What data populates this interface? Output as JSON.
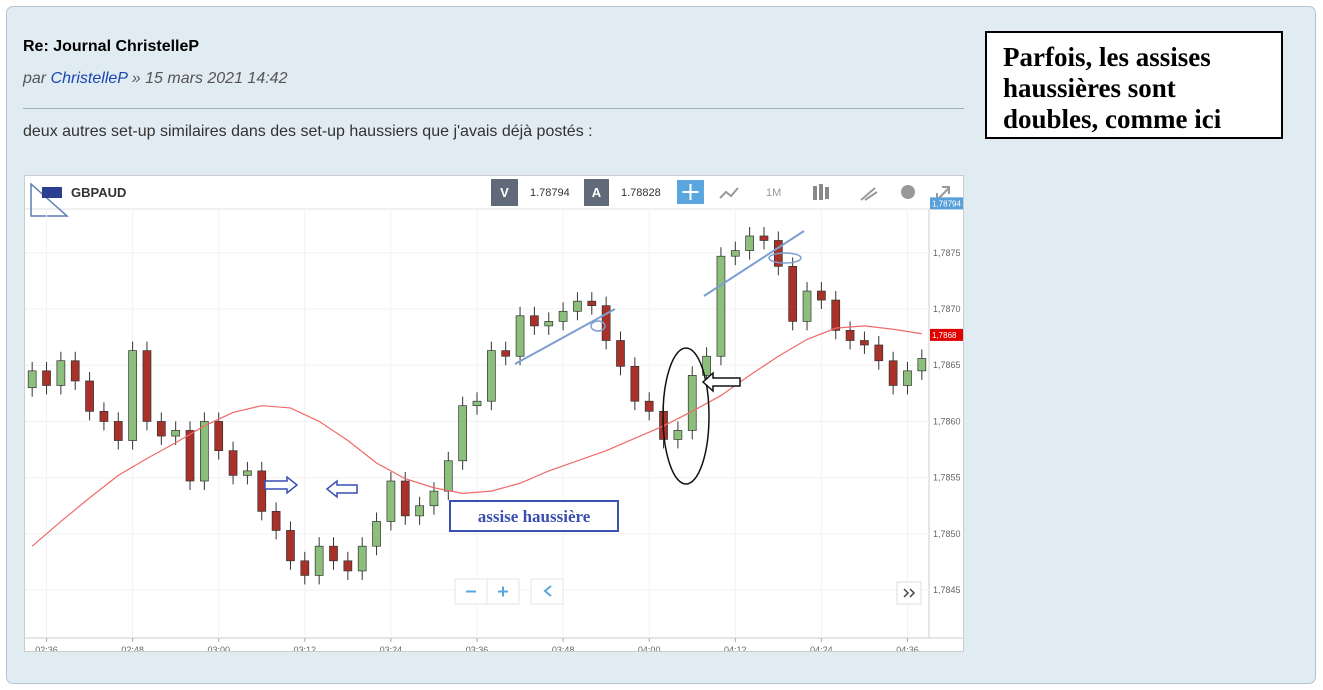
{
  "post": {
    "title": "Re: Journal ChristelleP",
    "by": "par",
    "author": "ChristelleP",
    "date": "» 15 mars 2021 14:42",
    "body": "deux autres set-up similaires dans des set-up haussiers que j'avais déjà postés :"
  },
  "callout": {
    "lines": [
      "Parfois, les assises",
      "haussières sont",
      "doubles, comme ici"
    ]
  },
  "chart_data": {
    "type": "candlestick",
    "title": "GBPAUD",
    "toolbar": {
      "bid_label": "V",
      "bid": "1.78794",
      "ask_label": "A",
      "ask": "1.78828",
      "timeframe": "1M"
    },
    "annotation": "assise haussière",
    "price_tag": {
      "value": 1.78794,
      "label": "1,78794"
    },
    "ma_tag": {
      "value": 1.78677,
      "label": "1,7868"
    },
    "x": [
      "02:34",
      "02:36",
      "02:38",
      "02:40",
      "02:42",
      "02:44",
      "02:46",
      "02:48",
      "02:50",
      "02:52",
      "02:54",
      "02:56",
      "02:58",
      "03:00",
      "03:02",
      "03:04",
      "03:06",
      "03:08",
      "03:10",
      "03:12",
      "03:14",
      "03:16",
      "03:18",
      "03:20",
      "03:22",
      "03:24",
      "03:26",
      "03:28",
      "03:30",
      "03:32",
      "03:34",
      "03:36",
      "03:38",
      "03:40",
      "03:42",
      "03:44",
      "03:46",
      "03:48",
      "03:50",
      "03:52",
      "03:54",
      "03:56",
      "03:58",
      "04:00",
      "04:02",
      "04:04",
      "04:06",
      "04:08",
      "04:10",
      "04:12",
      "04:14",
      "04:16",
      "04:18",
      "04:20",
      "04:22",
      "04:24",
      "04:26",
      "04:28",
      "04:30",
      "04:32",
      "04:34",
      "04:36",
      "04:38"
    ],
    "open": [
      1.7863,
      1.78645,
      1.78632,
      1.78654,
      1.78636,
      1.78609,
      1.786,
      1.78583,
      1.78663,
      1.786,
      1.78587,
      1.78592,
      1.78547,
      1.786,
      1.78574,
      1.78552,
      1.78556,
      1.7852,
      1.78503,
      1.78476,
      1.78463,
      1.78489,
      1.78476,
      1.78467,
      1.78489,
      1.78511,
      1.78547,
      1.78516,
      1.78525,
      1.78538,
      1.78565,
      1.78614,
      1.78618,
      1.78663,
      1.78658,
      1.78694,
      1.78685,
      1.78689,
      1.78698,
      1.78707,
      1.78703,
      1.78672,
      1.78649,
      1.78618,
      1.78609,
      1.78584,
      1.78592,
      1.78641,
      1.78658,
      1.78747,
      1.78752,
      1.78765,
      1.78761,
      1.78738,
      1.78689,
      1.78716,
      1.78708,
      1.78681,
      1.78672,
      1.78668,
      1.78654,
      1.78632,
      1.78645
    ],
    "high": [
      1.78653,
      1.78653,
      1.78662,
      1.78662,
      1.78644,
      1.78617,
      1.78608,
      1.78671,
      1.78671,
      1.78608,
      1.786,
      1.786,
      1.78608,
      1.78608,
      1.78582,
      1.78564,
      1.78564,
      1.78528,
      1.78511,
      1.78484,
      1.78497,
      1.78497,
      1.78484,
      1.78497,
      1.78519,
      1.78555,
      1.78555,
      1.78533,
      1.78546,
      1.78573,
      1.78622,
      1.78626,
      1.78671,
      1.78671,
      1.78702,
      1.78702,
      1.78697,
      1.78706,
      1.78715,
      1.78715,
      1.78711,
      1.7868,
      1.78657,
      1.78626,
      1.78617,
      1.786,
      1.78649,
      1.78666,
      1.78755,
      1.7876,
      1.78773,
      1.78773,
      1.78769,
      1.78746,
      1.78724,
      1.78724,
      1.78716,
      1.78689,
      1.7868,
      1.78676,
      1.78662,
      1.78653,
      1.78664
    ],
    "low": [
      1.78622,
      1.78624,
      1.78624,
      1.78628,
      1.78601,
      1.78592,
      1.78575,
      1.78575,
      1.78592,
      1.78579,
      1.78579,
      1.78539,
      1.78539,
      1.78566,
      1.78544,
      1.78544,
      1.78512,
      1.78495,
      1.78468,
      1.78455,
      1.78455,
      1.78468,
      1.78459,
      1.78459,
      1.78481,
      1.78503,
      1.78508,
      1.78508,
      1.78517,
      1.7853,
      1.78557,
      1.78606,
      1.7861,
      1.7865,
      1.7865,
      1.78677,
      1.78677,
      1.78681,
      1.7869,
      1.78695,
      1.78664,
      1.78641,
      1.7861,
      1.78601,
      1.78576,
      1.78576,
      1.78584,
      1.78633,
      1.7865,
      1.78739,
      1.78744,
      1.78753,
      1.7873,
      1.78681,
      1.78681,
      1.787,
      1.78673,
      1.78664,
      1.7866,
      1.78646,
      1.78624,
      1.78624,
      1.78637
    ],
    "close": [
      1.78645,
      1.78632,
      1.78654,
      1.78636,
      1.78609,
      1.786,
      1.78583,
      1.78663,
      1.786,
      1.78587,
      1.78592,
      1.78547,
      1.786,
      1.78574,
      1.78552,
      1.78556,
      1.7852,
      1.78503,
      1.78476,
      1.78463,
      1.78489,
      1.78476,
      1.78467,
      1.78489,
      1.78511,
      1.78547,
      1.78516,
      1.78525,
      1.78538,
      1.78565,
      1.78614,
      1.78618,
      1.78663,
      1.78658,
      1.78694,
      1.78685,
      1.78689,
      1.78698,
      1.78707,
      1.78703,
      1.78672,
      1.78649,
      1.78618,
      1.78609,
      1.78584,
      1.78592,
      1.78641,
      1.78658,
      1.78747,
      1.78752,
      1.78765,
      1.78761,
      1.78738,
      1.78689,
      1.78716,
      1.78708,
      1.78681,
      1.78672,
      1.78668,
      1.78654,
      1.78632,
      1.78645,
      1.78656
    ],
    "up_color": "#8dbf7c",
    "down_color": "#a8322a",
    "moving_average": {
      "color": "#f06a6a",
      "x": [
        "02:34",
        "02:38",
        "02:42",
        "02:46",
        "02:50",
        "02:54",
        "02:58",
        "03:02",
        "03:06",
        "03:10",
        "03:14",
        "03:18",
        "03:22",
        "03:26",
        "03:30",
        "03:34",
        "03:38",
        "03:42",
        "03:46",
        "03:50",
        "03:54",
        "03:58",
        "04:02",
        "04:06",
        "04:10",
        "04:14",
        "04:18",
        "04:22",
        "04:26",
        "04:30",
        "04:34",
        "04:38"
      ],
      "values": [
        1.78489,
        1.78511,
        1.78532,
        1.78552,
        1.78567,
        1.78581,
        1.78596,
        1.78608,
        1.78614,
        1.78612,
        1.786,
        1.78583,
        1.78563,
        1.78549,
        1.78541,
        1.78536,
        1.78538,
        1.78545,
        1.78556,
        1.78565,
        1.78574,
        1.78585,
        1.78596,
        1.78609,
        1.78623,
        1.78641,
        1.78658,
        1.78673,
        1.78683,
        1.78685,
        1.78682,
        1.78678
      ]
    },
    "xlim": [
      "02:33",
      "04:39"
    ],
    "xticks": [
      "02:36",
      "02:48",
      "03:00",
      "03:12",
      "03:24",
      "03:36",
      "03:48",
      "04:00",
      "04:12",
      "04:24",
      "04:36"
    ],
    "ylim": [
      1.78418,
      1.78789
    ],
    "yticks": [
      {
        "value": 1.7845,
        "label": "1,7845"
      },
      {
        "value": 1.785,
        "label": "1,7850"
      },
      {
        "value": 1.7855,
        "label": "1,7855"
      },
      {
        "value": 1.786,
        "label": "1,7860"
      },
      {
        "value": 1.7865,
        "label": "1,7865"
      },
      {
        "value": 1.787,
        "label": "1,7870"
      },
      {
        "value": 1.7875,
        "label": "1,7875"
      }
    ],
    "grid": true
  }
}
